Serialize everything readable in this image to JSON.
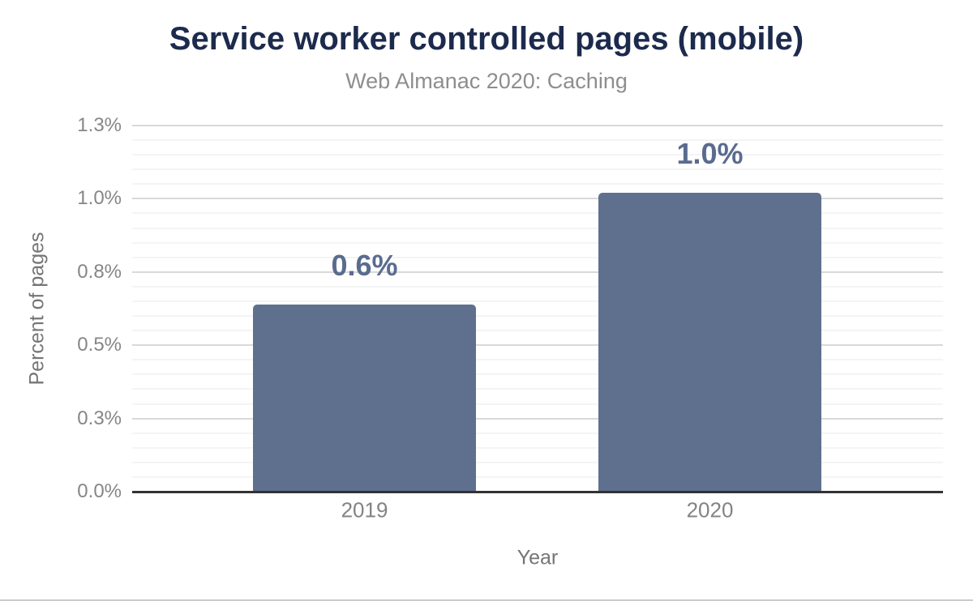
{
  "chart_data": {
    "type": "bar",
    "title": "Service worker controlled pages (mobile)",
    "subtitle": "Web Almanac 2020: Caching",
    "categories": [
      "2019",
      "2020"
    ],
    "values": [
      0.64,
      1.02
    ],
    "data_labels": [
      "0.6%",
      "1.0%"
    ],
    "xlabel": "Year",
    "ylabel": "Percent of pages",
    "ylim": [
      0,
      1.25
    ],
    "yticks": [
      {
        "value": 0.0,
        "label": "0.0%"
      },
      {
        "value": 0.25,
        "label": "0.3%"
      },
      {
        "value": 0.5,
        "label": "0.5%"
      },
      {
        "value": 0.75,
        "label": "0.8%"
      },
      {
        "value": 1.0,
        "label": "1.0%"
      },
      {
        "value": 1.25,
        "label": "1.3%"
      }
    ],
    "minor_tick_step": 0.05,
    "grid": true,
    "legend": "none",
    "colors": {
      "bar": "#5e708e",
      "data_label": "#5a6c8e",
      "title": "#1c2a4d",
      "subtitle": "#8e8e8e",
      "axis_label": "#868686",
      "axis_title": "#757575",
      "axis_line": "#333333",
      "gridline_major": "#d9d9d9",
      "gridline_minor": "#f4f4f4"
    }
  }
}
